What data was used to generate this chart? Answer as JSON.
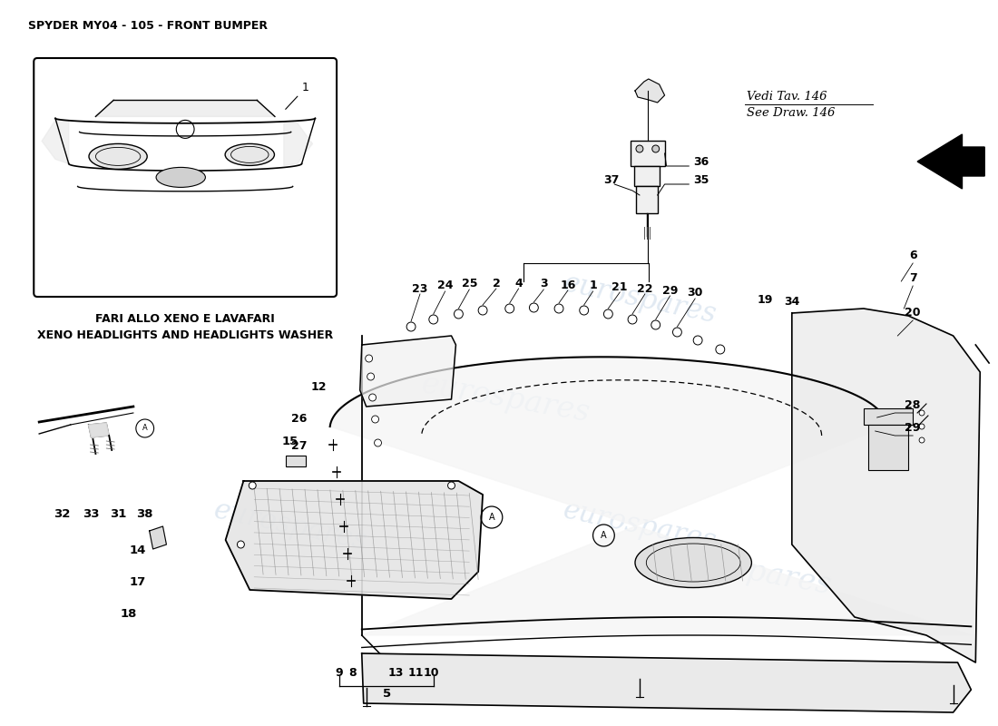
{
  "title": "SPYDER MY04 - 105 - FRONT BUMPER",
  "bg": "#ffffff",
  "watermark": "eurospares",
  "inset_caption1": "FARI ALLO XENO E LAVAFARI",
  "inset_caption2": "XENO HEADLIGHTS AND HEADLIGHTS WASHER",
  "ref1": "Vedi Tav. 146",
  "ref2": "See Draw. 146"
}
